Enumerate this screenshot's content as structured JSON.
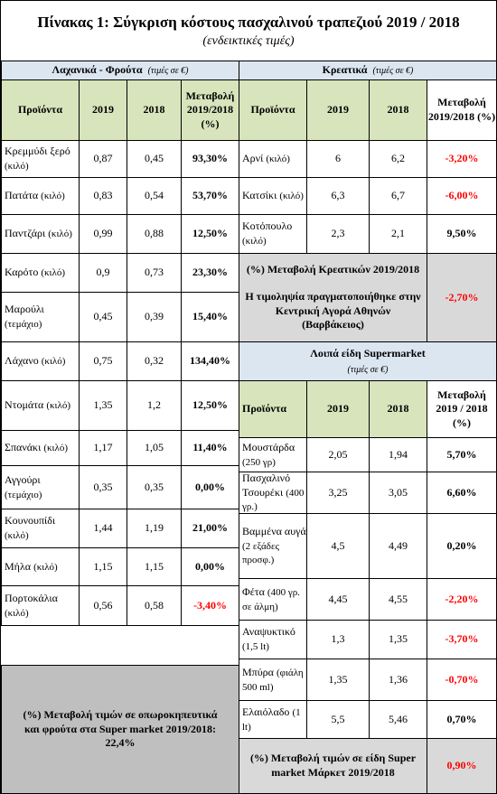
{
  "title": "Πίνακας 1: Σύγκριση κόστους πασχαλινού τραπεζιού 2019 / 2018",
  "subtitle": "(ενδεικτικές τιμές)",
  "veg": {
    "header": "Λαχανικά - Φρούτα",
    "unit_note": "(τιμές σε €)",
    "col_product": "Προϊόντα",
    "col_2019": "2019",
    "col_2018": "2018",
    "col_change": "Μεταβολή 2019/2018 (%)",
    "rows": [
      {
        "name": "Κρεμμύδι ξερό",
        "unit": "(κιλό)",
        "v2019": "0,87",
        "v2018": "0,45",
        "change": "93,30%",
        "negative": false
      },
      {
        "name": "Πατάτα",
        "unit": "(κιλό)",
        "v2019": "0,83",
        "v2018": "0,54",
        "change": "53,70%",
        "negative": false
      },
      {
        "name": "Παντζάρι",
        "unit": "(κιλό)",
        "v2019": "0,99",
        "v2018": "0,88",
        "change": "12,50%",
        "negative": false
      },
      {
        "name": "Καρότο",
        "unit": "(κιλό)",
        "v2019": "0,9",
        "v2018": "0,73",
        "change": "23,30%",
        "negative": false
      },
      {
        "name": "Μαρούλι",
        "unit": "(τεμάχιο)",
        "v2019": "0,45",
        "v2018": "0,39",
        "change": "15,40%",
        "negative": false
      },
      {
        "name": "Λάχανο",
        "unit": "(κιλό)",
        "v2019": "0,75",
        "v2018": "0,32",
        "change": "134,40%",
        "negative": false
      },
      {
        "name": "Ντομάτα",
        "unit": "(κιλό)",
        "v2019": "1,35",
        "v2018": "1,2",
        "change": "12,50%",
        "negative": false
      },
      {
        "name": "Σπανάκι",
        "unit": "(κιλό)",
        "v2019": "1,17",
        "v2018": "1,05",
        "change": "11,40%",
        "negative": false
      },
      {
        "name": "Αγγούρι",
        "unit": "(τεμάχιο)",
        "v2019": "0,35",
        "v2018": "0,35",
        "change": "0,00%",
        "negative": false
      },
      {
        "name": "Κουνουπίδι",
        "unit": "(κιλό)",
        "v2019": "1,44",
        "v2018": "1,19",
        "change": "21,00%",
        "negative": false
      },
      {
        "name": "Μήλα",
        "unit": "(κιλό)",
        "v2019": "1,15",
        "v2018": "1,15",
        "change": "0,00%",
        "negative": false
      },
      {
        "name": "Πορτοκάλια",
        "unit": "(κιλό)",
        "v2019": "0,56",
        "v2018": "0,58",
        "change": "-3,40%",
        "negative": true
      }
    ],
    "summary": "(%) Μεταβολή τιμών σε οπωροκηπευτικά και φρούτα στα Super market 2019/2018: 22,4%"
  },
  "meat": {
    "header": "Κρεατικά",
    "unit_note": "(τιμές σε €)",
    "col_product": "Προϊόντα",
    "col_2019": "2019",
    "col_2018": "2018",
    "col_change": "Μεταβολή 2019/2018 (%)",
    "rows": [
      {
        "name": "Αρνί",
        "unit": "(κιλό)",
        "v2019": "6",
        "v2018": "6,2",
        "change": "-3,20%",
        "negative": true
      },
      {
        "name": "Κατσίκι",
        "unit": "(κιλό)",
        "v2019": "6,3",
        "v2018": "6,7",
        "change": "-6,00%",
        "negative": true
      },
      {
        "name": "Κοτόπουλο",
        "unit": "(κιλό)",
        "v2019": "2,3",
        "v2018": "2,1",
        "change": "9,50%",
        "negative": false
      }
    ],
    "summary_title": "(%) Μεταβολή Κρεατικών 2019/2018",
    "summary_note": "Η τιμοληψία πραγματοποιήθηκε στην Κεντρική Αγορά Αθηνών (Βαρβάκειος)",
    "summary_value": "-2,70%"
  },
  "super": {
    "header": "Λοιπά είδη Supermarket",
    "unit_note": "(τιμές σε €)",
    "col_product": "Προϊόντα",
    "col_2019": "2019",
    "col_2018": "2018",
    "col_change": "Μεταβολή 2019 / 2018 (%)",
    "rows": [
      {
        "name": "Μουστάρδα",
        "unit": "(250 γρ)",
        "v2019": "2,05",
        "v2018": "1,94",
        "change": "5,70%",
        "negative": false
      },
      {
        "name": "Πασχαλινό Τσουρέκι",
        "unit": "(400 γρ.)",
        "v2019": "3,25",
        "v2018": "3,05",
        "change": "6,60%",
        "negative": false
      },
      {
        "name": "Βαμμένα αυγά",
        "unit": "(2 εξάδες προσφ.)",
        "v2019": "4,5",
        "v2018": "4,49",
        "change": "0,20%",
        "negative": false
      },
      {
        "name": "Φέτα",
        "unit": "(400 γρ. σε άλμη)",
        "v2019": "4,45",
        "v2018": "4,55",
        "change": "-2,20%",
        "negative": true
      },
      {
        "name": "Αναψυκτικό",
        "unit": "(1,5 lt)",
        "v2019": "1,3",
        "v2018": "1,35",
        "change": "-3,70%",
        "negative": true
      },
      {
        "name": "Μπύρα",
        "unit": "(φιάλη 500 ml)",
        "v2019": "1,35",
        "v2018": "1,36",
        "change": "-0,70%",
        "negative": true
      },
      {
        "name": "Ελαιόλαδο",
        "unit": "(1 lt)",
        "v2019": "5,5",
        "v2018": "5,46",
        "change": "0,70%",
        "negative": false
      }
    ],
    "summary_title": "(%) Μεταβολή τιμών σε είδη Super market Μάρκετ 2019/2018",
    "summary_value": "0,90%"
  }
}
